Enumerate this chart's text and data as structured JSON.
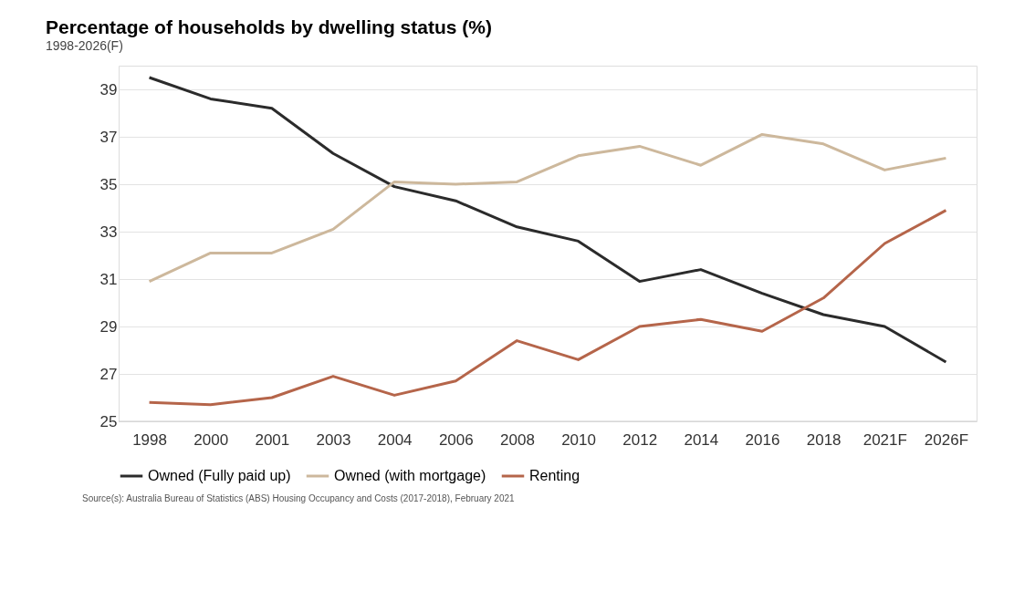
{
  "chart_data": {
    "type": "line",
    "title": "Percentage of households by dwelling status (%)",
    "subtitle": "1998-2026(F)",
    "categories": [
      "1998",
      "2000",
      "2001",
      "2003",
      "2004",
      "2006",
      "2008",
      "2010",
      "2012",
      "2014",
      "2016",
      "2018",
      "2021F",
      "2026F"
    ],
    "series": [
      {
        "name": "Owned (Fully paid up)",
        "color": "#2b2b2b",
        "values": [
          39.5,
          38.6,
          38.2,
          36.3,
          34.9,
          34.3,
          33.2,
          32.6,
          30.9,
          31.4,
          30.4,
          29.5,
          29.0,
          27.5
        ]
      },
      {
        "name": "Owned (with mortgage)",
        "color": "#cdb89c",
        "values": [
          30.9,
          32.1,
          32.1,
          33.1,
          35.1,
          35.0,
          35.1,
          36.2,
          36.6,
          35.8,
          37.1,
          36.7,
          35.6,
          36.1
        ]
      },
      {
        "name": "Renting",
        "color": "#b5654a",
        "values": [
          25.8,
          25.7,
          26.0,
          26.9,
          26.1,
          26.7,
          28.4,
          27.6,
          29.0,
          29.3,
          28.8,
          30.2,
          32.5,
          33.9
        ]
      }
    ],
    "ylim": [
      25,
      40
    ],
    "yticks": [
      25,
      27,
      29,
      31,
      33,
      35,
      37,
      39
    ],
    "grid": "y",
    "legend": "bottom",
    "marker": "none",
    "line_style": "solid",
    "annotations": [
      "Source(s): Australia Bureau of Statistics (ABS) Housing Occupancy and Costs (2017-2018), February 2021"
    ]
  }
}
